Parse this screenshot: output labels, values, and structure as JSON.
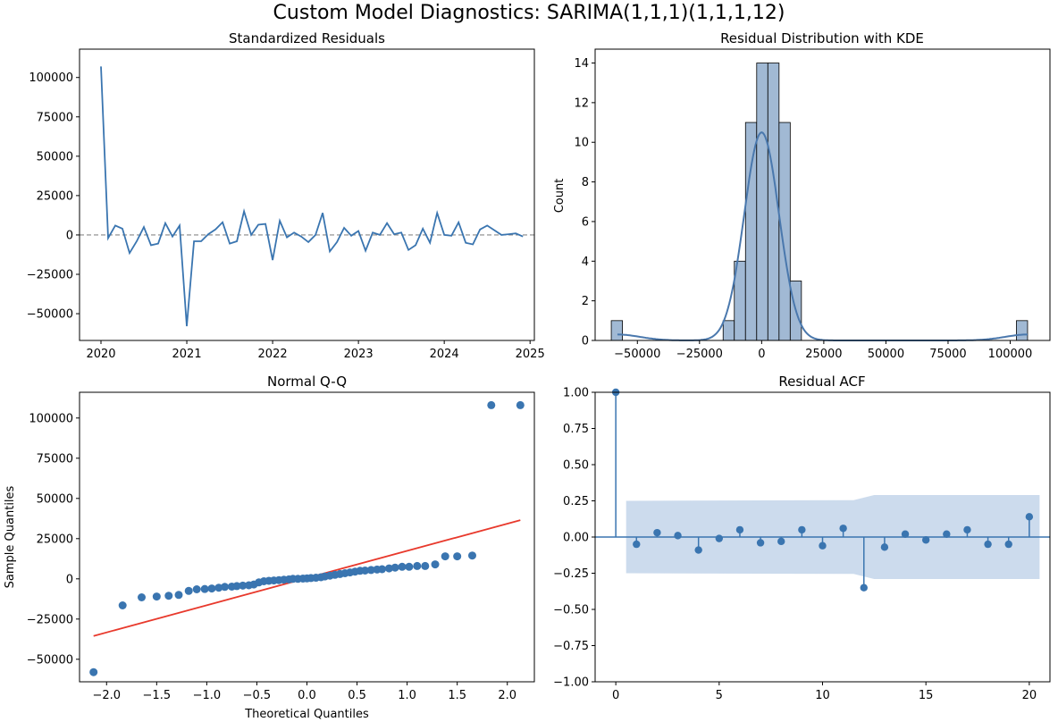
{
  "figure_title": "Custom Model Diagnostics: SARIMA(1,1,1)(1,1,1,12)",
  "chart_data": [
    {
      "type": "line",
      "title": "Standardized Residuals",
      "xlabel": "",
      "ylabel": "",
      "xlim": [
        2019.75,
        2025.05
      ],
      "ylim": [
        -67000,
        118000
      ],
      "xticks": [
        2020,
        2021,
        2022,
        2023,
        2024,
        2025
      ],
      "xtick_labels": [
        "2020",
        "2021",
        "2022",
        "2023",
        "2024",
        "2025"
      ],
      "yticks": [
        -50000,
        -25000,
        0,
        25000,
        50000,
        75000,
        100000
      ],
      "ytick_labels": [
        "−50000",
        "−25000",
        "0",
        "25000",
        "50000",
        "75000",
        "100000"
      ],
      "reference_line": 0,
      "line_color": "#3a75b0",
      "x_start": "2020-01",
      "frequency": "monthly",
      "values": [
        107000,
        -2000,
        6000,
        4000,
        -11500,
        -4000,
        5000,
        -6500,
        -5500,
        7500,
        -1000,
        6000,
        -58000,
        -4000,
        -4000,
        500,
        3500,
        8000,
        -5500,
        -4000,
        15000,
        0,
        6500,
        7000,
        -16000,
        9000,
        -1500,
        1500,
        -1000,
        -4500,
        0,
        14000,
        -10500,
        -4500,
        4500,
        -500,
        2500,
        -10000,
        1500,
        0,
        7500,
        500,
        1500,
        -9500,
        -6500,
        4000,
        -5000,
        14000,
        0,
        -500,
        8000,
        -5000,
        -6000,
        3500,
        6000,
        3000,
        0,
        500,
        1000,
        -1000
      ]
    },
    {
      "type": "histogram",
      "title": "Residual Distribution with KDE",
      "xlabel": "",
      "ylabel": "Count",
      "xlim": [
        -67000,
        116000
      ],
      "ylim": [
        0,
        14.7
      ],
      "xticks": [
        -50000,
        -25000,
        0,
        25000,
        50000,
        75000,
        100000
      ],
      "xtick_labels": [
        "−50000",
        "−25000",
        "0",
        "25000",
        "50000",
        "75000",
        "100000"
      ],
      "yticks": [
        0,
        2,
        4,
        6,
        8,
        10,
        12,
        14
      ],
      "ytick_labels": [
        "0",
        "2",
        "4",
        "6",
        "8",
        "10",
        "12",
        "14"
      ],
      "bin_width": 4500,
      "bins": [
        {
          "start": -60500,
          "count": 1
        },
        {
          "start": -15500,
          "count": 1
        },
        {
          "start": -11000,
          "count": 4
        },
        {
          "start": -6500,
          "count": 11
        },
        {
          "start": -2000,
          "count": 14
        },
        {
          "start": 2500,
          "count": 14
        },
        {
          "start": 7000,
          "count": 11
        },
        {
          "start": 11500,
          "count": 3
        },
        {
          "start": 102500,
          "count": 1
        }
      ],
      "bar_color": "#a1b9d4",
      "kde_color": "#4a78ad",
      "kde": {
        "center": 0,
        "sigma": 7000,
        "peak": 10.5,
        "tails": [
          {
            "center": -58000,
            "amplitude": 0.3
          },
          {
            "center": 107000,
            "amplitude": 0.3
          }
        ]
      }
    },
    {
      "type": "scatter",
      "title": "Normal Q-Q",
      "xlabel": "Theoretical Quantiles",
      "ylabel": "Sample Quantiles",
      "xlim": [
        -2.27,
        2.27
      ],
      "ylim": [
        -64000,
        116000
      ],
      "xticks": [
        -2.0,
        -1.5,
        -1.0,
        -0.5,
        0.0,
        0.5,
        1.0,
        1.5,
        2.0
      ],
      "xtick_labels": [
        "−2.0",
        "−1.5",
        "−1.0",
        "−0.5",
        "0.0",
        "0.5",
        "1.0",
        "1.5",
        "2.0"
      ],
      "yticks": [
        -50000,
        -25000,
        0,
        25000,
        50000,
        75000,
        100000
      ],
      "ytick_labels": [
        "−50000",
        "−25000",
        "0",
        "25000",
        "50000",
        "75000",
        "100000"
      ],
      "point_color": "#3a75b0",
      "line_color": "#e8392c",
      "reference_line": {
        "x": [
          -2.13,
          2.13
        ],
        "y": [
          -35500,
          36500
        ]
      },
      "theoretical": [
        -2.13,
        -1.84,
        -1.65,
        -1.5,
        -1.38,
        -1.28,
        -1.18,
        -1.1,
        -1.02,
        -0.95,
        -0.88,
        -0.82,
        -0.75,
        -0.7,
        -0.64,
        -0.58,
        -0.53,
        -0.48,
        -0.43,
        -0.38,
        -0.33,
        -0.28,
        -0.23,
        -0.18,
        -0.14,
        -0.09,
        -0.04,
        0.0,
        0.04,
        0.09,
        0.14,
        0.18,
        0.23,
        0.28,
        0.33,
        0.38,
        0.43,
        0.48,
        0.53,
        0.58,
        0.64,
        0.7,
        0.75,
        0.82,
        0.88,
        0.95,
        1.02,
        1.1,
        1.18,
        1.28,
        1.38,
        1.5,
        1.65,
        1.84,
        2.13
      ],
      "sample": [
        -58000,
        -16500,
        -11500,
        -11000,
        -10500,
        -10000,
        -7500,
        -6500,
        -6300,
        -6000,
        -5500,
        -5000,
        -4800,
        -4500,
        -4200,
        -4000,
        -3500,
        -2200,
        -1500,
        -1200,
        -1000,
        -800,
        -500,
        -300,
        0,
        0,
        200,
        300,
        500,
        700,
        1000,
        1500,
        2000,
        2500,
        3000,
        3500,
        4000,
        4500,
        5000,
        5200,
        5500,
        5800,
        6000,
        6500,
        7000,
        7500,
        7500,
        8000,
        8000,
        9000,
        14000,
        14000,
        14500,
        108000,
        108000
      ]
    },
    {
      "type": "stem",
      "title": "Residual ACF",
      "xlabel": "",
      "ylabel": "",
      "xlim": [
        -1,
        21
      ],
      "ylim": [
        -1.0,
        1.0
      ],
      "xticks": [
        0,
        5,
        10,
        15,
        20
      ],
      "xtick_labels": [
        "0",
        "5",
        "10",
        "15",
        "20"
      ],
      "yticks": [
        -1.0,
        -0.75,
        -0.5,
        -0.25,
        0.0,
        0.25,
        0.5,
        0.75,
        1.0
      ],
      "ytick_labels": [
        "−1.00",
        "−0.75",
        "−0.50",
        "−0.25",
        "0.00",
        "0.25",
        "0.50",
        "0.75",
        "1.00"
      ],
      "lags": [
        0,
        1,
        2,
        3,
        4,
        5,
        6,
        7,
        8,
        9,
        10,
        11,
        12,
        13,
        14,
        15,
        16,
        17,
        18,
        19,
        20
      ],
      "values": [
        1.0,
        -0.05,
        0.03,
        0.01,
        -0.09,
        -0.01,
        0.05,
        -0.04,
        -0.03,
        0.05,
        -0.06,
        0.06,
        -0.35,
        -0.07,
        0.02,
        -0.02,
        0.02,
        0.05,
        -0.05,
        -0.05,
        0.14
      ],
      "confidence_band": {
        "lags": [
          0.5,
          11.5,
          12.5,
          20.5
        ],
        "upper": [
          0.25,
          0.255,
          0.29,
          0.29
        ]
      },
      "stem_color": "#3a75b0",
      "band_color": "#c9d9ec"
    }
  ]
}
